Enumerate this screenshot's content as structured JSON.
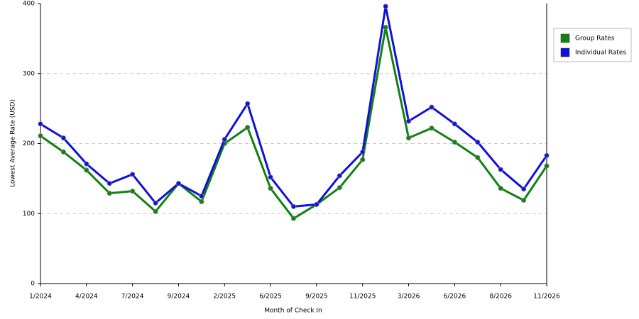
{
  "chart_data": {
    "type": "line",
    "x_label": "Month of Check In",
    "y_label": "Lowest Average Rate (USD)",
    "categories": [
      "1/2024",
      null,
      "4/2024",
      null,
      "7/2024",
      null,
      "9/2024",
      null,
      "2/2025",
      null,
      "6/2025",
      null,
      "9/2025",
      null,
      "11/2025",
      null,
      "3/2026",
      null,
      "6/2026",
      null,
      "8/2026",
      null,
      "11/2026"
    ],
    "series": [
      {
        "name": "Group Rates",
        "color": "#138013",
        "values": [
          211,
          188,
          162,
          129,
          132,
          103,
          143,
          117,
          200,
          223,
          136,
          93,
          113,
          137,
          177,
          366,
          208,
          222,
          202,
          180,
          136,
          119,
          168
        ]
      },
      {
        "name": "Individual Rates",
        "color": "#1010dd",
        "values": [
          228,
          208,
          171,
          143,
          156,
          115,
          143,
          125,
          206,
          257,
          152,
          110,
          113,
          154,
          188,
          396,
          232,
          252,
          228,
          202,
          163,
          135,
          183
        ]
      }
    ],
    "ylim": [
      0,
      400
    ],
    "yticks": [
      0,
      100,
      200,
      300,
      400
    ],
    "grid": true,
    "legend": "right"
  }
}
